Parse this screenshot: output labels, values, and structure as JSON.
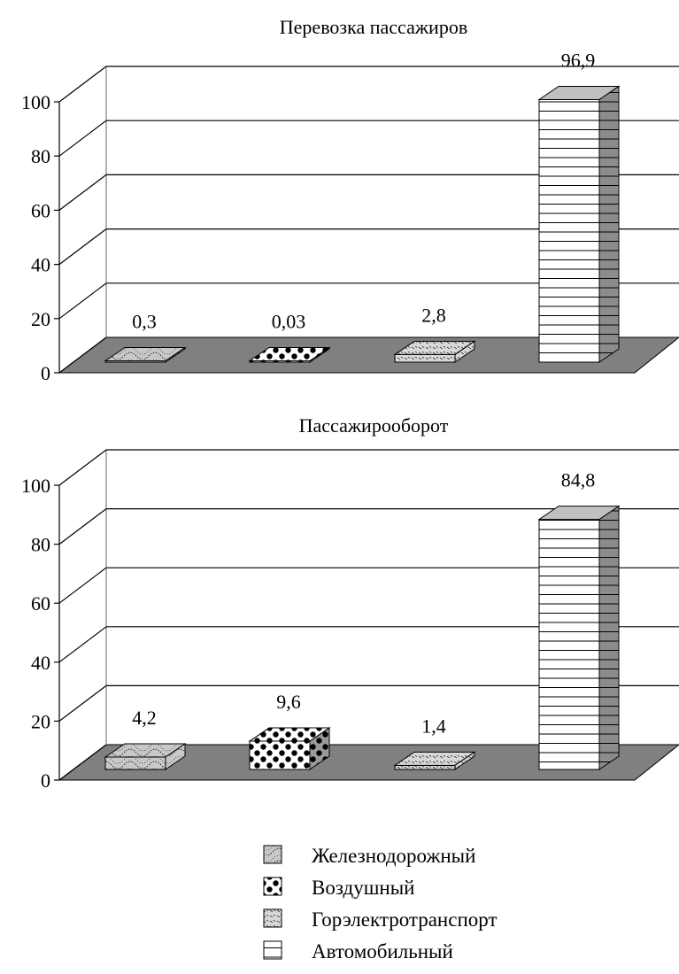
{
  "chart_data": [
    {
      "type": "bar",
      "title": "Перевозка пассажиров",
      "categories": [
        "Железнодорожный",
        "Воздушный",
        "Горэлектротранспорт",
        "Автомобильный"
      ],
      "values": [
        0.3,
        0.03,
        2.8,
        96.9
      ],
      "value_labels": [
        "0,3",
        "0,03",
        "2,8",
        "96,9"
      ],
      "ylim": [
        0,
        100
      ],
      "yticks": [
        "0",
        "20",
        "40",
        "60",
        "80",
        "100"
      ],
      "style": "3d-bar",
      "floor_color": "#808080"
    },
    {
      "type": "bar",
      "title": "Пассажирооборот",
      "categories": [
        "Железнодорожный",
        "Воздушный",
        "Горэлектротранспорт",
        "Автомобильный"
      ],
      "values": [
        4.2,
        9.6,
        1.4,
        84.8
      ],
      "value_labels": [
        "4,2",
        "9,6",
        "1,4",
        "84,8"
      ],
      "ylim": [
        0,
        100
      ],
      "yticks": [
        "0",
        "20",
        "40",
        "60",
        "80",
        "100"
      ],
      "style": "3d-bar",
      "floor_color": "#808080"
    }
  ],
  "legend": {
    "position": "bottom-center",
    "items": [
      {
        "label": "Железнодорожный",
        "pattern": "rail"
      },
      {
        "label": "Воздушный",
        "pattern": "air"
      },
      {
        "label": "Горэлектротранспорт",
        "pattern": "urban"
      },
      {
        "label": "Автомобильный",
        "pattern": "auto"
      }
    ]
  }
}
